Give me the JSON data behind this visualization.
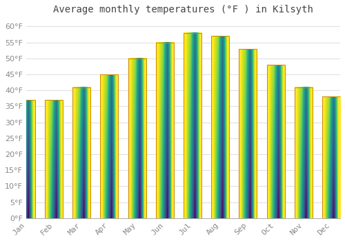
{
  "title": "Average monthly temperatures (°F ) in Kilsyth",
  "months": [
    "Jan",
    "Feb",
    "Mar",
    "Apr",
    "May",
    "Jun",
    "Jul",
    "Aug",
    "Sep",
    "Oct",
    "Nov",
    "Dec"
  ],
  "values": [
    37,
    37,
    41,
    45,
    50,
    55,
    58,
    57,
    53,
    48,
    41,
    38
  ],
  "bar_color_top": "#FFD060",
  "bar_color_bottom": "#FFA020",
  "bar_edge_color": "#CC8800",
  "background_color": "#FFFFFF",
  "grid_color": "#E0E0E0",
  "ylim": [
    0,
    62
  ],
  "yticks": [
    0,
    5,
    10,
    15,
    20,
    25,
    30,
    35,
    40,
    45,
    50,
    55,
    60
  ],
  "title_fontsize": 10,
  "tick_fontsize": 8,
  "tick_color": "#888888",
  "title_color": "#444444"
}
